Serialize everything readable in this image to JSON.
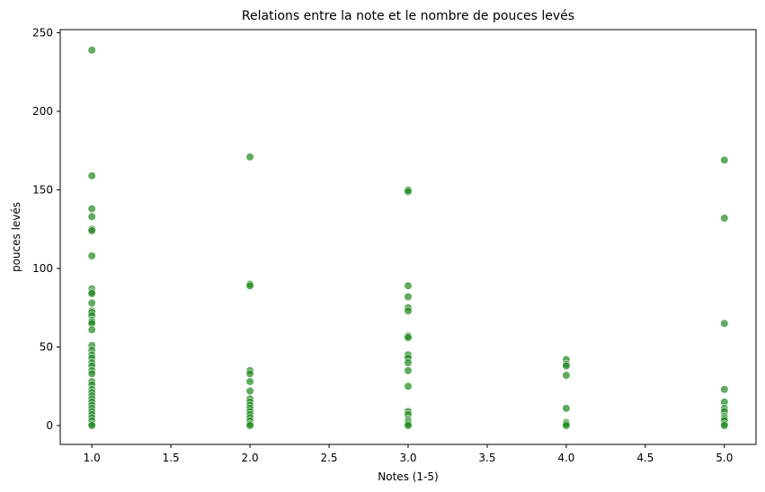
{
  "chart_data": {
    "type": "scatter",
    "title": "Relations entre la note et le nombre de pouces levés",
    "xlabel": "Notes (1-5)",
    "ylabel": "pouces levés",
    "xlim": [
      0.8,
      5.2
    ],
    "ylim": [
      -12,
      252
    ],
    "xticks": [
      1.0,
      1.5,
      2.0,
      2.5,
      3.0,
      3.5,
      4.0,
      4.5,
      5.0
    ],
    "xtick_labels": [
      "1.0",
      "1.5",
      "2.0",
      "2.5",
      "3.0",
      "3.5",
      "4.0",
      "4.5",
      "5.0"
    ],
    "yticks": [
      0,
      50,
      100,
      150,
      200,
      250
    ],
    "ytick_labels": [
      "0",
      "50",
      "100",
      "150",
      "200",
      "250"
    ],
    "grid": false,
    "marker_color": "#228b22",
    "marker_edge_color": "#ffffff",
    "points": [
      {
        "x": 1,
        "y": 239
      },
      {
        "x": 1,
        "y": 159
      },
      {
        "x": 1,
        "y": 138
      },
      {
        "x": 1,
        "y": 133
      },
      {
        "x": 1,
        "y": 125
      },
      {
        "x": 1,
        "y": 124
      },
      {
        "x": 1,
        "y": 108
      },
      {
        "x": 1,
        "y": 87
      },
      {
        "x": 1,
        "y": 85
      },
      {
        "x": 1,
        "y": 84
      },
      {
        "x": 1,
        "y": 78
      },
      {
        "x": 1,
        "y": 73
      },
      {
        "x": 1,
        "y": 72
      },
      {
        "x": 1,
        "y": 70
      },
      {
        "x": 1,
        "y": 67
      },
      {
        "x": 1,
        "y": 66
      },
      {
        "x": 1,
        "y": 65
      },
      {
        "x": 1,
        "y": 61
      },
      {
        "x": 1,
        "y": 51
      },
      {
        "x": 1,
        "y": 48
      },
      {
        "x": 1,
        "y": 45
      },
      {
        "x": 1,
        "y": 43
      },
      {
        "x": 1,
        "y": 40
      },
      {
        "x": 1,
        "y": 38
      },
      {
        "x": 1,
        "y": 35
      },
      {
        "x": 1,
        "y": 33
      },
      {
        "x": 1,
        "y": 28
      },
      {
        "x": 1,
        "y": 26
      },
      {
        "x": 1,
        "y": 23
      },
      {
        "x": 1,
        "y": 21
      },
      {
        "x": 1,
        "y": 19
      },
      {
        "x": 1,
        "y": 17
      },
      {
        "x": 1,
        "y": 15
      },
      {
        "x": 1,
        "y": 13
      },
      {
        "x": 1,
        "y": 11
      },
      {
        "x": 1,
        "y": 9
      },
      {
        "x": 1,
        "y": 7
      },
      {
        "x": 1,
        "y": 5
      },
      {
        "x": 1,
        "y": 3
      },
      {
        "x": 1,
        "y": 1
      },
      {
        "x": 1,
        "y": 0
      },
      {
        "x": 2,
        "y": 171
      },
      {
        "x": 2,
        "y": 90
      },
      {
        "x": 2,
        "y": 89
      },
      {
        "x": 2,
        "y": 35
      },
      {
        "x": 2,
        "y": 33
      },
      {
        "x": 2,
        "y": 28
      },
      {
        "x": 2,
        "y": 22
      },
      {
        "x": 2,
        "y": 17
      },
      {
        "x": 2,
        "y": 15
      },
      {
        "x": 2,
        "y": 13
      },
      {
        "x": 2,
        "y": 11
      },
      {
        "x": 2,
        "y": 9
      },
      {
        "x": 2,
        "y": 7
      },
      {
        "x": 2,
        "y": 5
      },
      {
        "x": 2,
        "y": 3
      },
      {
        "x": 2,
        "y": 1
      },
      {
        "x": 2,
        "y": 0
      },
      {
        "x": 3,
        "y": 150
      },
      {
        "x": 3,
        "y": 149
      },
      {
        "x": 3,
        "y": 89
      },
      {
        "x": 3,
        "y": 82
      },
      {
        "x": 3,
        "y": 75
      },
      {
        "x": 3,
        "y": 73
      },
      {
        "x": 3,
        "y": 57
      },
      {
        "x": 3,
        "y": 56
      },
      {
        "x": 3,
        "y": 45
      },
      {
        "x": 3,
        "y": 43
      },
      {
        "x": 3,
        "y": 40
      },
      {
        "x": 3,
        "y": 35
      },
      {
        "x": 3,
        "y": 25
      },
      {
        "x": 3,
        "y": 9
      },
      {
        "x": 3,
        "y": 7
      },
      {
        "x": 3,
        "y": 4
      },
      {
        "x": 3,
        "y": 3
      },
      {
        "x": 3,
        "y": 2
      },
      {
        "x": 3,
        "y": 1
      },
      {
        "x": 3,
        "y": 0
      },
      {
        "x": 4,
        "y": 42
      },
      {
        "x": 4,
        "y": 39
      },
      {
        "x": 4,
        "y": 38
      },
      {
        "x": 4,
        "y": 32
      },
      {
        "x": 4,
        "y": 11
      },
      {
        "x": 4,
        "y": 2
      },
      {
        "x": 4,
        "y": 1
      },
      {
        "x": 4,
        "y": 0
      },
      {
        "x": 5,
        "y": 169
      },
      {
        "x": 5,
        "y": 132
      },
      {
        "x": 5,
        "y": 65
      },
      {
        "x": 5,
        "y": 23
      },
      {
        "x": 5,
        "y": 15
      },
      {
        "x": 5,
        "y": 11
      },
      {
        "x": 5,
        "y": 9
      },
      {
        "x": 5,
        "y": 6
      },
      {
        "x": 5,
        "y": 5
      },
      {
        "x": 5,
        "y": 4
      },
      {
        "x": 5,
        "y": 3
      },
      {
        "x": 5,
        "y": 1
      },
      {
        "x": 5,
        "y": 0
      }
    ]
  }
}
